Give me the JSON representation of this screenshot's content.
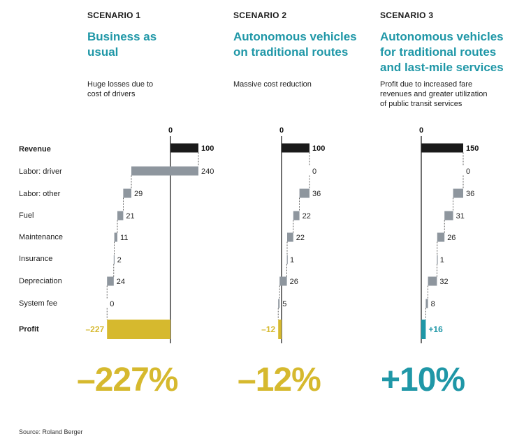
{
  "source": "Source: Roland Berger",
  "row_labels": [
    "Revenue",
    "Labor: driver",
    "Labor: other",
    "Fuel",
    "Maintenance",
    "Insurance",
    "Depreciation",
    "System fee",
    "Profit"
  ],
  "scenarios": [
    {
      "tag": "SCENARIO 1",
      "title_lines": [
        "Business as",
        "usual"
      ],
      "desc_lines": [
        "Huge losses due to",
        "cost of drivers"
      ],
      "big_pct": "–227%",
      "profit_label": "–227",
      "zero_label": "0",
      "color": "#d6b92e"
    },
    {
      "tag": "SCENARIO 2",
      "title_lines": [
        "Autonomous vehicles",
        "on traditional routes"
      ],
      "desc_lines": [
        "Massive cost reduction"
      ],
      "big_pct": "–12%",
      "profit_label": "–12",
      "zero_label": "0",
      "color": "#d6b92e"
    },
    {
      "tag": "SCENARIO 3",
      "title_lines": [
        "Autonomous vehicles",
        "for traditional routes",
        "and last-mile services"
      ],
      "desc_lines": [
        "Profit due to increased fare",
        "revenues and greater utilization",
        "of public transit services"
      ],
      "big_pct": "+10%",
      "profit_label": "+16",
      "zero_label": "0",
      "color": "#1f97a7"
    }
  ],
  "colors": {
    "revenue": "#1a1a1a",
    "cost": "#8e969e",
    "loss": "#d6b92e",
    "gain": "#1f97a7",
    "title_accent": "#1f97a7"
  },
  "chart_data": [
    {
      "type": "waterfall",
      "title": "Business as usual",
      "categories": [
        "Revenue",
        "Labor: driver",
        "Labor: other",
        "Fuel",
        "Maintenance",
        "Insurance",
        "Depreciation",
        "System fee",
        "Profit"
      ],
      "values": [
        100,
        240,
        29,
        21,
        11,
        2,
        24,
        0,
        -227
      ],
      "value_labels": [
        "100",
        "240",
        "29",
        "21",
        "11",
        "2",
        "24",
        "0",
        "–227"
      ]
    },
    {
      "type": "waterfall",
      "title": "Autonomous vehicles on traditional routes",
      "categories": [
        "Revenue",
        "Labor: driver",
        "Labor: other",
        "Fuel",
        "Maintenance",
        "Insurance",
        "Depreciation",
        "System fee",
        "Profit"
      ],
      "values": [
        100,
        0,
        36,
        22,
        22,
        1,
        26,
        5,
        -12
      ],
      "value_labels": [
        "100",
        "0",
        "36",
        "22",
        "22",
        "1",
        "26",
        "5",
        "–12"
      ]
    },
    {
      "type": "waterfall",
      "title": "Autonomous vehicles for traditional routes and last-mile services",
      "categories": [
        "Revenue",
        "Labor: driver",
        "Labor: other",
        "Fuel",
        "Maintenance",
        "Insurance",
        "Depreciation",
        "System fee",
        "Profit"
      ],
      "values": [
        150,
        0,
        36,
        31,
        26,
        1,
        32,
        8,
        16
      ],
      "value_labels": [
        "150",
        "0",
        "36",
        "31",
        "26",
        "1",
        "32",
        "8",
        "+16"
      ]
    }
  ]
}
